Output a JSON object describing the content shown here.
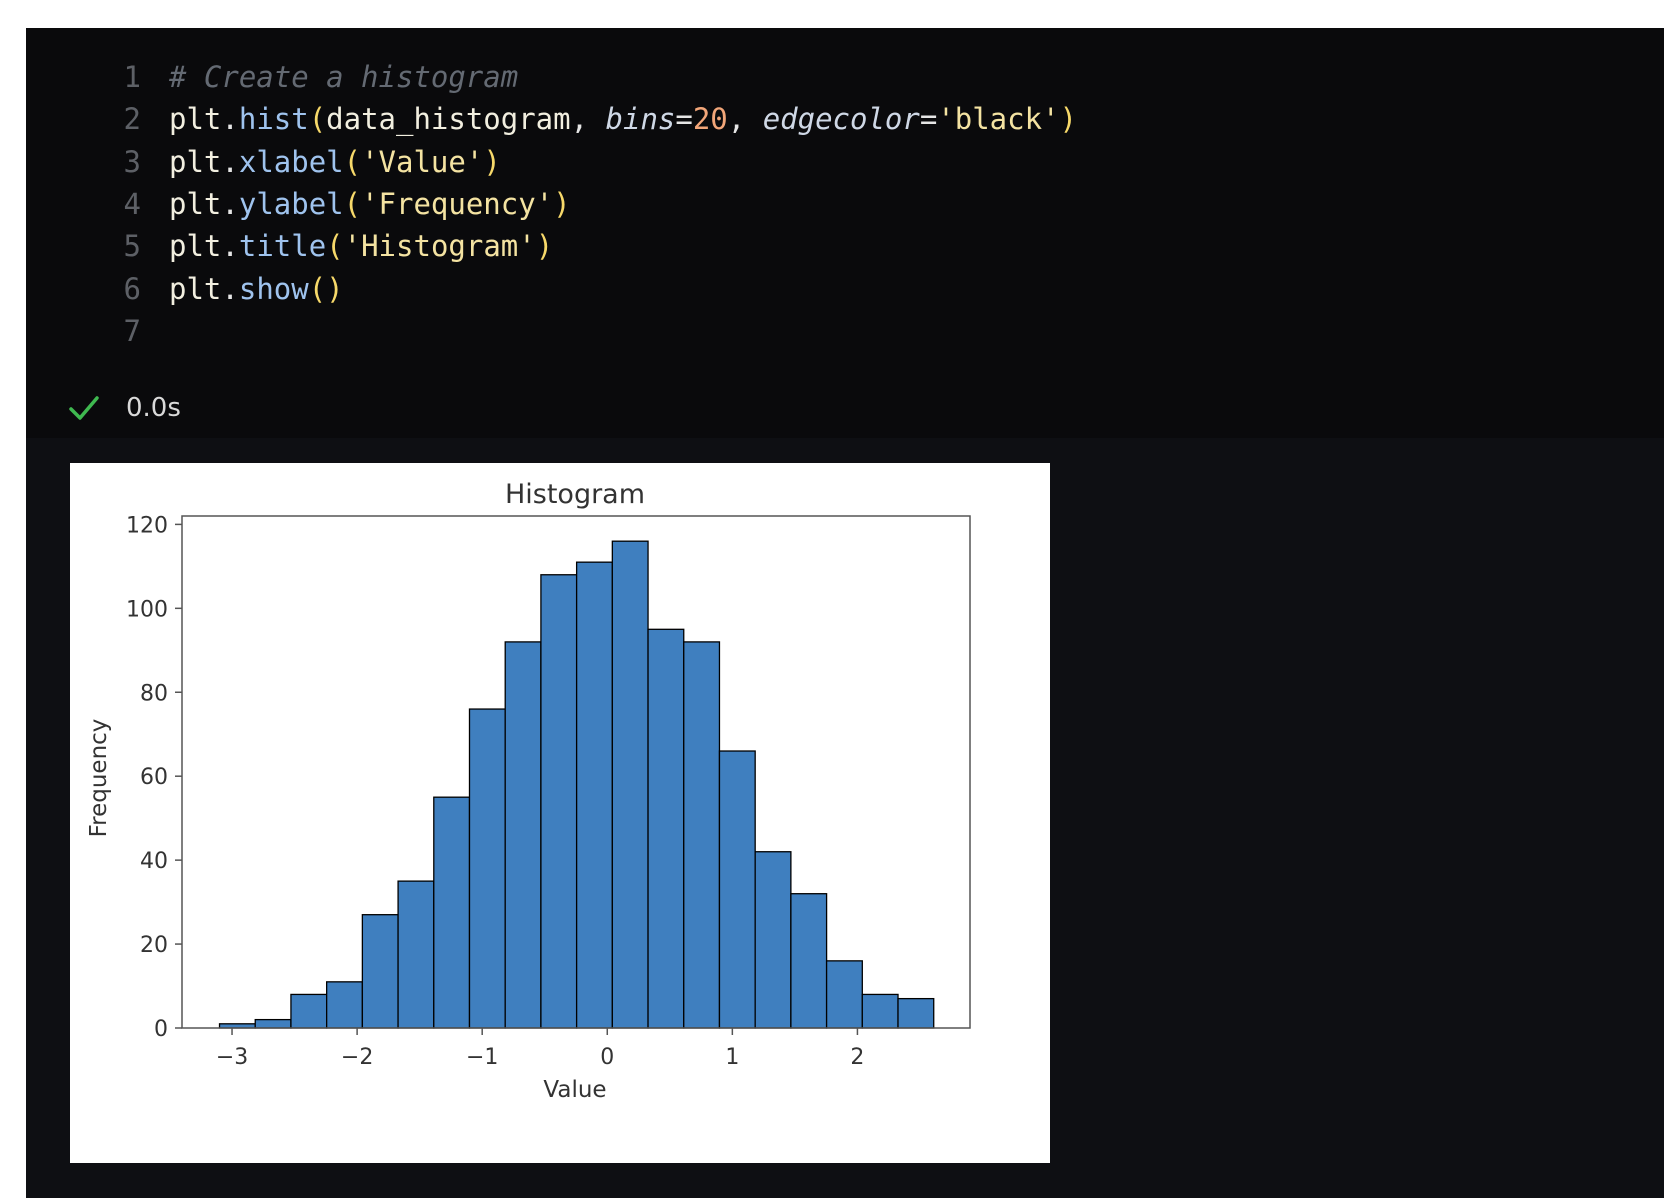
{
  "code_cell": {
    "line_numbers": [
      "1",
      "2",
      "3",
      "4",
      "5",
      "6",
      "7"
    ],
    "lines": [
      [
        {
          "t": "# Create a histogram",
          "c": "comment"
        }
      ],
      [
        {
          "t": "plt",
          "c": "obj"
        },
        {
          "t": ".",
          "c": "punct"
        },
        {
          "t": "hist",
          "c": "fn"
        },
        {
          "t": "(",
          "c": "paren"
        },
        {
          "t": "data_histogram",
          "c": "var"
        },
        {
          "t": ", ",
          "c": "punct"
        },
        {
          "t": "bins",
          "c": "kw"
        },
        {
          "t": "=",
          "c": "punct"
        },
        {
          "t": "20",
          "c": "num"
        },
        {
          "t": ", ",
          "c": "punct"
        },
        {
          "t": "edgecolor",
          "c": "kw"
        },
        {
          "t": "=",
          "c": "punct"
        },
        {
          "t": "'black'",
          "c": "str"
        },
        {
          "t": ")",
          "c": "paren"
        }
      ],
      [
        {
          "t": "plt",
          "c": "obj"
        },
        {
          "t": ".",
          "c": "punct"
        },
        {
          "t": "xlabel",
          "c": "fn"
        },
        {
          "t": "(",
          "c": "paren"
        },
        {
          "t": "'Value'",
          "c": "str"
        },
        {
          "t": ")",
          "c": "paren"
        }
      ],
      [
        {
          "t": "plt",
          "c": "obj"
        },
        {
          "t": ".",
          "c": "punct"
        },
        {
          "t": "ylabel",
          "c": "fn"
        },
        {
          "t": "(",
          "c": "paren"
        },
        {
          "t": "'Frequency'",
          "c": "str"
        },
        {
          "t": ")",
          "c": "paren"
        }
      ],
      [
        {
          "t": "plt",
          "c": "obj"
        },
        {
          "t": ".",
          "c": "punct"
        },
        {
          "t": "title",
          "c": "fn"
        },
        {
          "t": "(",
          "c": "paren"
        },
        {
          "t": "'Histogram'",
          "c": "str"
        },
        {
          "t": ")",
          "c": "paren"
        }
      ],
      [
        {
          "t": "plt",
          "c": "obj"
        },
        {
          "t": ".",
          "c": "punct"
        },
        {
          "t": "show",
          "c": "fn"
        },
        {
          "t": "()",
          "c": "paren"
        }
      ],
      []
    ]
  },
  "status": {
    "icon": "check-icon",
    "time": "0.0s",
    "color": "#3fb950"
  },
  "chart_data": {
    "type": "bar",
    "title": "Histogram",
    "xlabel": "Value",
    "ylabel": "Frequency",
    "xlim": [
      -3.4,
      2.9
    ],
    "ylim": [
      0,
      122
    ],
    "xticks": [
      -3,
      -2,
      -1,
      0,
      1,
      2
    ],
    "xtick_labels": [
      "−3",
      "−2",
      "−1",
      "0",
      "1",
      "2"
    ],
    "yticks": [
      0,
      20,
      40,
      60,
      80,
      100,
      120
    ],
    "ytick_labels": [
      "0",
      "20",
      "40",
      "60",
      "80",
      "100",
      "120"
    ],
    "grid": false,
    "bins": {
      "start": -3.1,
      "width": 0.2855,
      "values": [
        1,
        2,
        8,
        11,
        27,
        35,
        55,
        76,
        92,
        108,
        111,
        116,
        95,
        92,
        66,
        42,
        32,
        16,
        8,
        7
      ]
    },
    "bar_color": "#3f7fbf",
    "edge_color": "#000000"
  }
}
